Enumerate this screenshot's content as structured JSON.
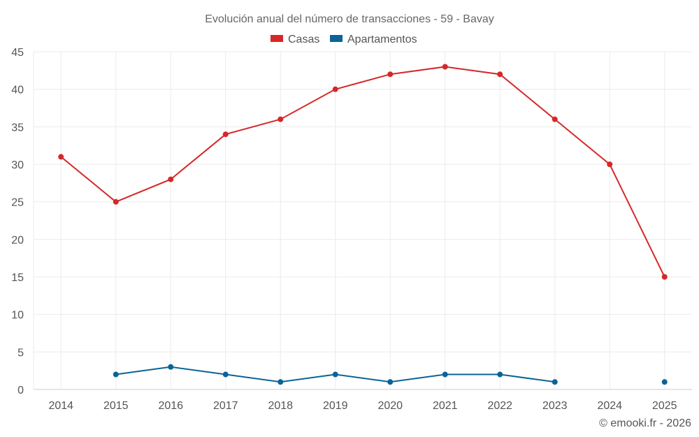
{
  "chart_data": {
    "type": "line",
    "title": "Evolución anual del número de transacciones - 59 - Bavay",
    "categories": [
      "2014",
      "2015",
      "2016",
      "2017",
      "2018",
      "2019",
      "2020",
      "2021",
      "2022",
      "2023",
      "2024",
      "2025"
    ],
    "series": [
      {
        "name": "Casas",
        "color": "#d62728",
        "values": [
          31,
          25,
          28,
          34,
          36,
          40,
          42,
          43,
          42,
          36,
          30,
          15
        ]
      },
      {
        "name": "Apartamentos",
        "color": "#0a6496",
        "values": [
          null,
          2,
          3,
          2,
          1,
          2,
          1,
          2,
          2,
          1,
          null,
          1
        ]
      }
    ],
    "ylim": [
      0,
      45
    ],
    "yticks": [
      0,
      5,
      10,
      15,
      20,
      25,
      30,
      35,
      40,
      45
    ],
    "xlabel": "",
    "ylabel": "",
    "legend_position": "top-center",
    "grid": true
  },
  "footer": "© emooki.fr - 2026"
}
